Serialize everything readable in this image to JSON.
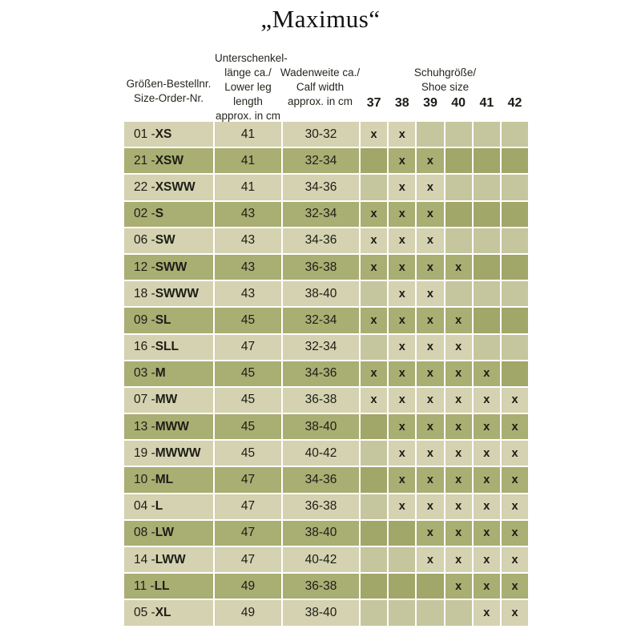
{
  "title": "„Maximus“",
  "table": {
    "col1_header": {
      "line1": "Größen-Bestellnr.",
      "line2": "Size-Order-Nr."
    },
    "col2_header": {
      "line1": "Unterschenkel-",
      "line2": "länge ca./",
      "line3": "Lower leg length",
      "line4": "approx. in cm"
    },
    "col3_header": {
      "line1": "Wadenweite ca./",
      "line2": "Calf width",
      "line3": "approx. in cm"
    },
    "shoe_header": {
      "line1": "Schuhgröße/",
      "line2": "Shoe size"
    },
    "shoe_sizes": [
      "37",
      "38",
      "39",
      "40",
      "41",
      "42"
    ],
    "mark_glyph": "x",
    "rows": [
      {
        "prefix": "01 - ",
        "size": "XS",
        "leg_length": "41",
        "calf_width": "30-32",
        "marks": [
          true,
          true,
          false,
          false,
          false,
          false
        ]
      },
      {
        "prefix": "21 - ",
        "size": "XSW",
        "leg_length": "41",
        "calf_width": "32-34",
        "marks": [
          false,
          true,
          true,
          false,
          false,
          false
        ]
      },
      {
        "prefix": "22 - ",
        "size": "XSWW",
        "leg_length": "41",
        "calf_width": "34-36",
        "marks": [
          false,
          true,
          true,
          false,
          false,
          false
        ]
      },
      {
        "prefix": "02 - ",
        "size": "S",
        "leg_length": "43",
        "calf_width": "32-34",
        "marks": [
          true,
          true,
          true,
          false,
          false,
          false
        ]
      },
      {
        "prefix": "06 - ",
        "size": "SW",
        "leg_length": "43",
        "calf_width": "34-36",
        "marks": [
          true,
          true,
          true,
          false,
          false,
          false
        ]
      },
      {
        "prefix": "12 - ",
        "size": "SWW",
        "leg_length": "43",
        "calf_width": "36-38",
        "marks": [
          true,
          true,
          true,
          true,
          false,
          false
        ]
      },
      {
        "prefix": "18 - ",
        "size": "SWWW",
        "leg_length": "43",
        "calf_width": "38-40",
        "marks": [
          false,
          true,
          true,
          false,
          false,
          false
        ]
      },
      {
        "prefix": "09 - ",
        "size": "SL",
        "leg_length": "45",
        "calf_width": "32-34",
        "marks": [
          true,
          true,
          true,
          true,
          false,
          false
        ]
      },
      {
        "prefix": "16 - ",
        "size": "SLL",
        "leg_length": "47",
        "calf_width": "32-34",
        "marks": [
          false,
          true,
          true,
          true,
          false,
          false
        ]
      },
      {
        "prefix": "03 - ",
        "size": "M",
        "leg_length": "45",
        "calf_width": "34-36",
        "marks": [
          true,
          true,
          true,
          true,
          true,
          false
        ]
      },
      {
        "prefix": "07 - ",
        "size": "MW",
        "leg_length": "45",
        "calf_width": "36-38",
        "marks": [
          true,
          true,
          true,
          true,
          true,
          true
        ]
      },
      {
        "prefix": "13 - ",
        "size": "MWW",
        "leg_length": "45",
        "calf_width": "38-40",
        "marks": [
          false,
          true,
          true,
          true,
          true,
          true
        ]
      },
      {
        "prefix": "19 - ",
        "size": "MWWW",
        "leg_length": "45",
        "calf_width": "40-42",
        "marks": [
          false,
          true,
          true,
          true,
          true,
          true
        ]
      },
      {
        "prefix": "10 - ",
        "size": "ML",
        "leg_length": "47",
        "calf_width": "34-36",
        "marks": [
          false,
          true,
          true,
          true,
          true,
          true
        ]
      },
      {
        "prefix": "04 - ",
        "size": "L",
        "leg_length": "47",
        "calf_width": "36-38",
        "marks": [
          false,
          true,
          true,
          true,
          true,
          true
        ]
      },
      {
        "prefix": "08 - ",
        "size": "LW",
        "leg_length": "47",
        "calf_width": "38-40",
        "marks": [
          false,
          false,
          true,
          true,
          true,
          true
        ]
      },
      {
        "prefix": "14 - ",
        "size": "LWW",
        "leg_length": "47",
        "calf_width": "40-42",
        "marks": [
          false,
          false,
          true,
          true,
          true,
          true
        ]
      },
      {
        "prefix": "11 - ",
        "size": "LL",
        "leg_length": "49",
        "calf_width": "36-38",
        "marks": [
          false,
          false,
          false,
          true,
          true,
          true
        ]
      },
      {
        "prefix": "05 - ",
        "size": "XL",
        "leg_length": "49",
        "calf_width": "38-40",
        "marks": [
          false,
          false,
          false,
          false,
          true,
          true
        ]
      }
    ]
  },
  "colors": {
    "row_light": "#d4d2b0",
    "row_light_empty": "#c6c69e",
    "row_dark": "#a9ae73",
    "row_dark_empty": "#a1a669",
    "grid_line": "#ffffff",
    "text": "#1d1d17",
    "background": "#ffffff"
  }
}
